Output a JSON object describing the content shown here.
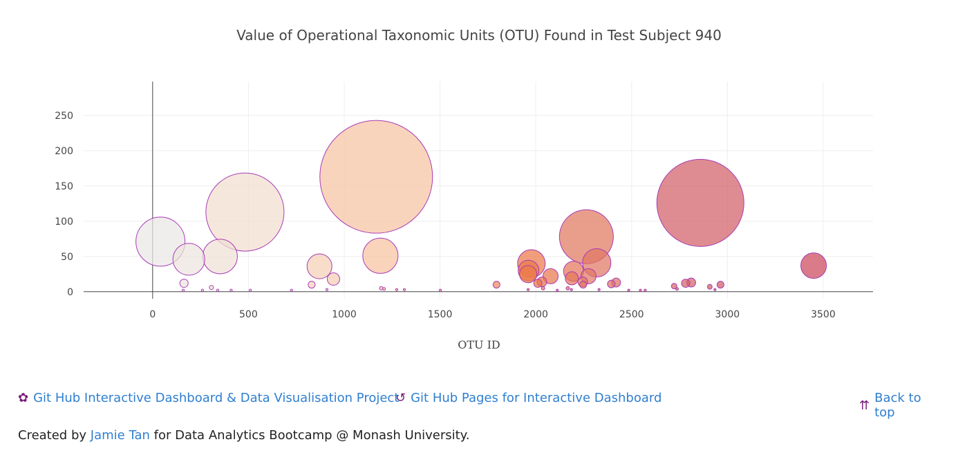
{
  "chart_data": {
    "type": "scatter",
    "subtype": "bubble",
    "title": "Value of Operational Taxonomic Units (OTU) Found in Test Subject 940",
    "xlabel": "OTU ID",
    "ylabel": "",
    "xlim": [
      -360,
      3760
    ],
    "ylim": [
      -10,
      298
    ],
    "xticks": [
      0,
      500,
      1000,
      1500,
      2000,
      2500,
      3000,
      3500
    ],
    "yticks": [
      0,
      50,
      100,
      150,
      200,
      250
    ],
    "grid": true,
    "colorscale": "colour by OTU ID: light grey (low) through peach and orange to crimson (high)",
    "marker_outline_color": "#a83ab5",
    "marker_size_equals_value": true,
    "points": [
      {
        "x": 41,
        "y": 71
      },
      {
        "x": 189,
        "y": 46
      },
      {
        "x": 352,
        "y": 50
      },
      {
        "x": 482,
        "y": 113
      },
      {
        "x": 164,
        "y": 12
      },
      {
        "x": 307,
        "y": 6
      },
      {
        "x": 160,
        "y": 2
      },
      {
        "x": 260,
        "y": 2
      },
      {
        "x": 340,
        "y": 2
      },
      {
        "x": 410,
        "y": 2
      },
      {
        "x": 510,
        "y": 2
      },
      {
        "x": 725,
        "y": 2
      },
      {
        "x": 830,
        "y": 10
      },
      {
        "x": 871,
        "y": 36
      },
      {
        "x": 944,
        "y": 18
      },
      {
        "x": 910,
        "y": 3
      },
      {
        "x": 1167,
        "y": 163
      },
      {
        "x": 1189,
        "y": 51
      },
      {
        "x": 1193,
        "y": 5
      },
      {
        "x": 1208,
        "y": 4
      },
      {
        "x": 1274,
        "y": 3
      },
      {
        "x": 1314,
        "y": 3
      },
      {
        "x": 1502,
        "y": 2
      },
      {
        "x": 1795,
        "y": 10
      },
      {
        "x": 1960,
        "y": 3
      },
      {
        "x": 1977,
        "y": 40
      },
      {
        "x": 1962,
        "y": 30
      },
      {
        "x": 1960,
        "y": 25
      },
      {
        "x": 2011,
        "y": 12
      },
      {
        "x": 2032,
        "y": 14
      },
      {
        "x": 2038,
        "y": 5
      },
      {
        "x": 2077,
        "y": 22
      },
      {
        "x": 2112,
        "y": 2
      },
      {
        "x": 2167,
        "y": 5
      },
      {
        "x": 2186,
        "y": 3
      },
      {
        "x": 2188,
        "y": 19
      },
      {
        "x": 2197,
        "y": 29
      },
      {
        "x": 2245,
        "y": 14
      },
      {
        "x": 2247,
        "y": 10
      },
      {
        "x": 2264,
        "y": 78
      },
      {
        "x": 2275,
        "y": 22
      },
      {
        "x": 2318,
        "y": 41
      },
      {
        "x": 2330,
        "y": 3
      },
      {
        "x": 2394,
        "y": 11
      },
      {
        "x": 2419,
        "y": 13
      },
      {
        "x": 2485,
        "y": 2
      },
      {
        "x": 2546,
        "y": 2
      },
      {
        "x": 2571,
        "y": 2
      },
      {
        "x": 2722,
        "y": 8
      },
      {
        "x": 2737,
        "y": 4
      },
      {
        "x": 2782,
        "y": 12
      },
      {
        "x": 2811,
        "y": 13
      },
      {
        "x": 2859,
        "y": 126
      },
      {
        "x": 2908,
        "y": 7
      },
      {
        "x": 2935,
        "y": 3
      },
      {
        "x": 2964,
        "y": 10
      },
      {
        "x": 3450,
        "y": 37
      }
    ]
  },
  "links": {
    "project": {
      "label": "Git Hub Interactive Dashboard & Data Visualisation Project",
      "icon": "github-octocat-icon"
    },
    "pages": {
      "label": "Git Hub Pages for Interactive Dashboard",
      "icon": "link-loop-icon"
    },
    "back_to_top": {
      "label": "Back to top",
      "icon": "double-chevron-up-icon"
    }
  },
  "footer": {
    "prefix": "Created by",
    "author": "Jamie Tan",
    "suffix": "for Data Analytics Bootcamp @ Monash University."
  },
  "colors": {
    "link": "#2f7fd0",
    "icon": "#7a1a7a"
  }
}
